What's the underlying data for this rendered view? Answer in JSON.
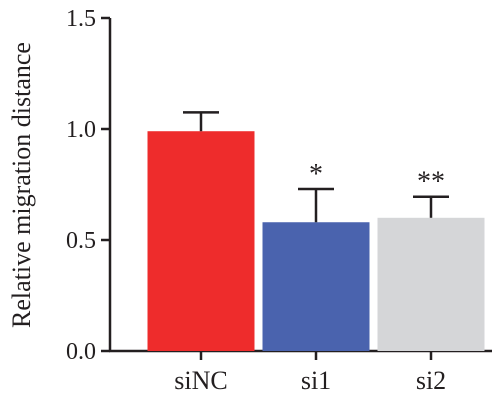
{
  "chart_data": {
    "type": "bar",
    "title": "",
    "xlabel": "",
    "ylabel": "Relative migration distance",
    "categories": [
      "siNC",
      "si1",
      "si2"
    ],
    "values": [
      0.99,
      0.58,
      0.6
    ],
    "errors": [
      0.085,
      0.15,
      0.095
    ],
    "significance": [
      "",
      "*",
      "**"
    ],
    "colors": [
      "#ee2c2c",
      "#4a63ae",
      "#d5d6d8"
    ],
    "ylim": [
      0,
      1.5
    ],
    "yticks": [
      0.0,
      0.5,
      1.0,
      1.5
    ],
    "ytick_labels": [
      "0.0",
      "0.5",
      "1.0",
      "1.5"
    ],
    "grid": false,
    "legend": "none"
  }
}
